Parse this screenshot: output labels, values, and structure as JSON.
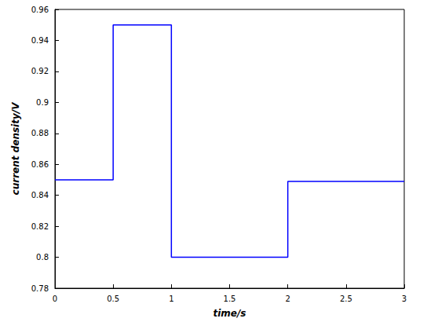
{
  "chart_data": {
    "type": "line",
    "x_label": "time/s",
    "y_label": "current density/V",
    "x": [
      0,
      0.5,
      0.5,
      1,
      1,
      2,
      2,
      3
    ],
    "values": [
      0.85,
      0.85,
      0.95,
      0.95,
      0.8,
      0.8,
      0.849,
      0.849
    ],
    "color": "#0000ff",
    "xlim": [
      0,
      3
    ],
    "ylim": [
      0.78,
      0.96
    ],
    "xticks": [
      0,
      0.5,
      1,
      1.5,
      2,
      2.5,
      3
    ],
    "yticks": [
      0.78,
      0.8,
      0.82,
      0.84,
      0.86,
      0.88,
      0.9,
      0.92,
      0.94,
      0.96
    ],
    "grid": false
  }
}
